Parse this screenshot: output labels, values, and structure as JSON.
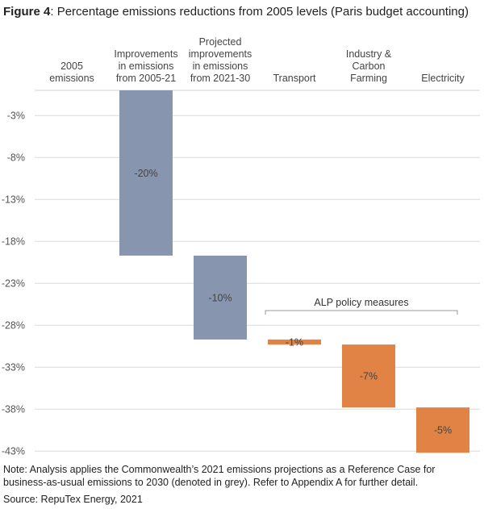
{
  "title_bold": "Figure 4",
  "title_rest": ": Percentage emissions reductions from 2005 levels (Paris budget accounting)",
  "note": "Note: Analysis applies the Commonwealth’s 2021 emissions projections as a Reference Case for business-as-usual emissions to 2030 (denoted in grey). Refer to Appendix A for further detail.",
  "source": "Source: RepuTex Energy, 2021",
  "chart_data": {
    "type": "bar",
    "subtype": "waterfall",
    "categories": [
      [
        "2005",
        "emissions"
      ],
      [
        "Improvements",
        "in emissions",
        "from 2005-21"
      ],
      [
        "Projected",
        "improvements",
        "in emissions",
        "from 2021-30"
      ],
      [
        "Transport"
      ],
      [
        "Industry &",
        "Carbon",
        "Farming"
      ],
      [
        "Electricity"
      ]
    ],
    "bars": [
      null,
      {
        "start": 0,
        "end": -19.7,
        "label": "-20%",
        "color": "#8795ae"
      },
      {
        "start": -19.7,
        "end": -29.7,
        "label": "-10%",
        "color": "#8795ae"
      },
      {
        "start": -29.7,
        "end": -30.3,
        "label": "-1%",
        "color": "#e08344"
      },
      {
        "start": -30.3,
        "end": -37.8,
        "label": "-7%",
        "color": "#e08344"
      },
      {
        "start": -37.8,
        "end": -43.2,
        "label": "-5%",
        "color": "#e08344"
      }
    ],
    "yticks": [
      -3,
      -8,
      -13,
      -18,
      -23,
      -28,
      -33,
      -38,
      -43
    ],
    "ytick_labels": [
      "-3%",
      "-8%",
      "-13%",
      "-18%",
      "-23%",
      "-28%",
      "-33%",
      "-38%",
      "-43%"
    ],
    "ylim": [
      -43.5,
      0
    ],
    "grid": true,
    "annotation": {
      "text": "ALP policy measures",
      "span": [
        "Transport",
        "Electricity"
      ]
    }
  }
}
